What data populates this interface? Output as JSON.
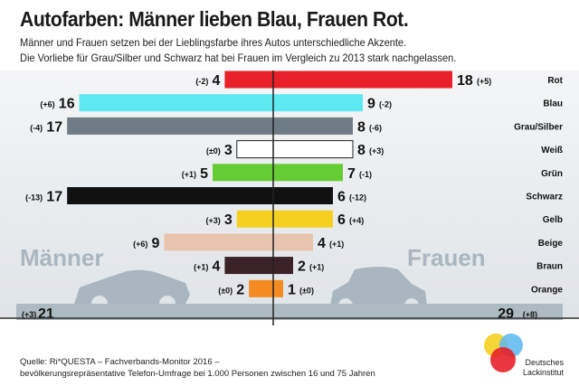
{
  "title": "Autofarben: Männer lieben Blau, Frauen Rot.",
  "subtitle": [
    "Männer und Frauen setzen bei der Lieblingsfarbe ihres Autos unterschiedliche Akzente.",
    "Die Vorliebe für Grau/Silber und Schwarz hat bei Frauen im Vergleich zu 2013 stark nachgelassen."
  ],
  "group_labels": {
    "men": "Männer",
    "women": "Frauen"
  },
  "source": [
    "Quelle: Ri*QUESTA – Fachverbands-Monitor 2016 –",
    "bevölkerungsrepräsentative Telefon-Umfrage bei 1.000 Personen zwischen 16 und 75 Jahren"
  ],
  "logo": {
    "text": [
      "Deutsches",
      "Lackinstitut"
    ]
  },
  "chart_data": {
    "type": "bar",
    "orientation": "horizontal-butterfly",
    "categories": [
      "Rot",
      "Blau",
      "Grau/Silber",
      "Weiß",
      "Grün",
      "Schwarz",
      "Gelb",
      "Beige",
      "Braun",
      "Orange",
      ""
    ],
    "colors": [
      "#e8202a",
      "#5ee8f0",
      "#6f7c85",
      "#ffffff",
      "#66cc33",
      "#111111",
      "#f5d020",
      "#e8c4ae",
      "#3a2228",
      "#f58a20",
      "#aebac2"
    ],
    "series": [
      {
        "name": "Männer",
        "values": [
          4,
          16,
          17,
          3,
          5,
          17,
          3,
          9,
          4,
          2,
          21
        ],
        "change_labels": [
          "(-2)",
          "(+6)",
          "(-4)",
          "(±0)",
          "(+1)",
          "(-13)",
          "(+3)",
          "(+6)",
          "(+1)",
          "(±0)",
          "(+3)"
        ]
      },
      {
        "name": "Frauen",
        "values": [
          18,
          9,
          8,
          8,
          7,
          6,
          6,
          4,
          2,
          1,
          29
        ],
        "change_labels": [
          "(+5)",
          "(-2)",
          "(-6)",
          "(+3)",
          "(-1)",
          "(-12)",
          "(+4)",
          "(+1)",
          "(+1)",
          "(±0)",
          "(+8)"
        ]
      }
    ]
  }
}
